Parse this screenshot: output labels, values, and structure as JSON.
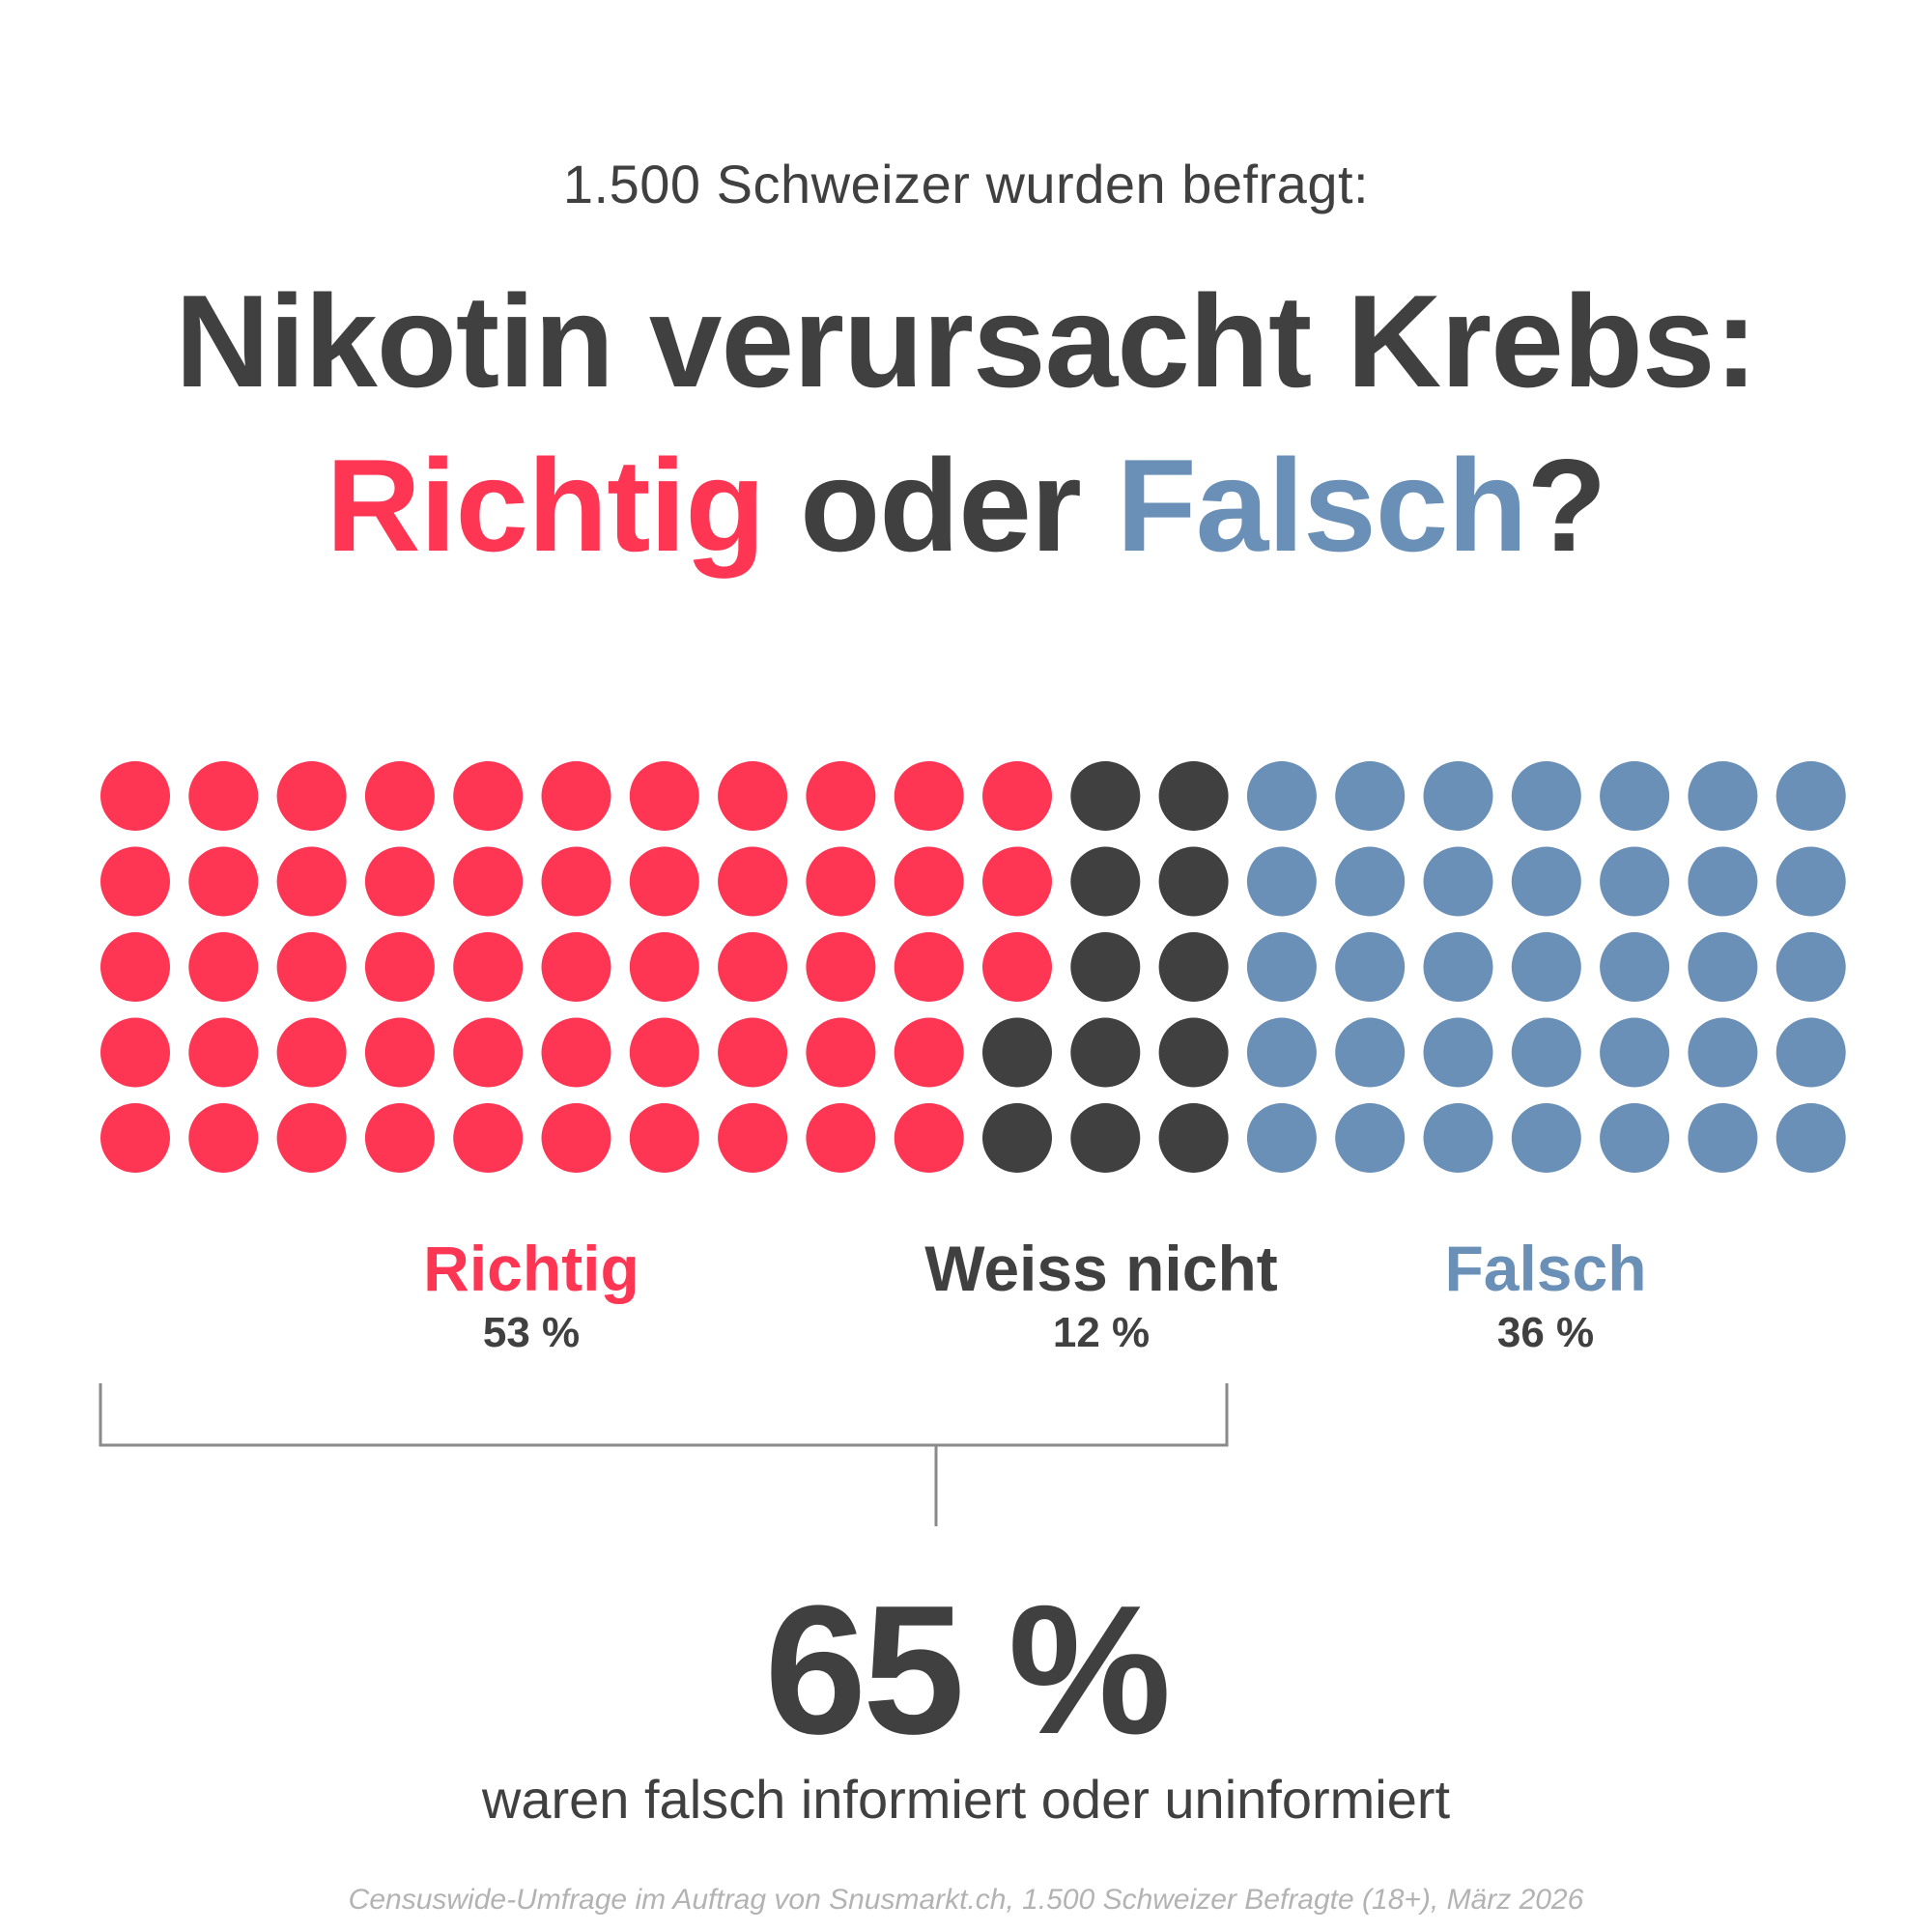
{
  "header": {
    "subtitle": "1.500 Schweizer wurden befragt:",
    "title_line1": "Nikotin verursacht Krebs:",
    "title_word_richtig": "Richtig",
    "title_word_oder": " oder ",
    "title_word_falsch": "Falsch",
    "title_question_mark": "?"
  },
  "colors": {
    "richtig": "#fe3553",
    "weiss_nicht": "#404040",
    "falsch": "#6a90b7",
    "text": "#404040",
    "bracket": "#8a8a8a",
    "source": "#b3b3b3"
  },
  "chart_data": {
    "type": "waffle",
    "grid": {
      "rows": 5,
      "columns": 20,
      "total_dots": 100,
      "fill_order": "column-major"
    },
    "categories": [
      "Richtig",
      "Weiss nicht",
      "Falsch"
    ],
    "values_percent": [
      53,
      12,
      36
    ],
    "value_labels": [
      "53 %",
      "12 %",
      "36 %"
    ],
    "dot_counts": [
      53,
      12,
      35
    ]
  },
  "summary": {
    "value": "65 %",
    "caption": "waren falsch informiert oder uninformiert"
  },
  "footer": {
    "source": "Censuswide-Umfrage im Auftrag von Snusmarkt.ch, 1.500 Schweizer Befragte (18+), März 2026"
  }
}
